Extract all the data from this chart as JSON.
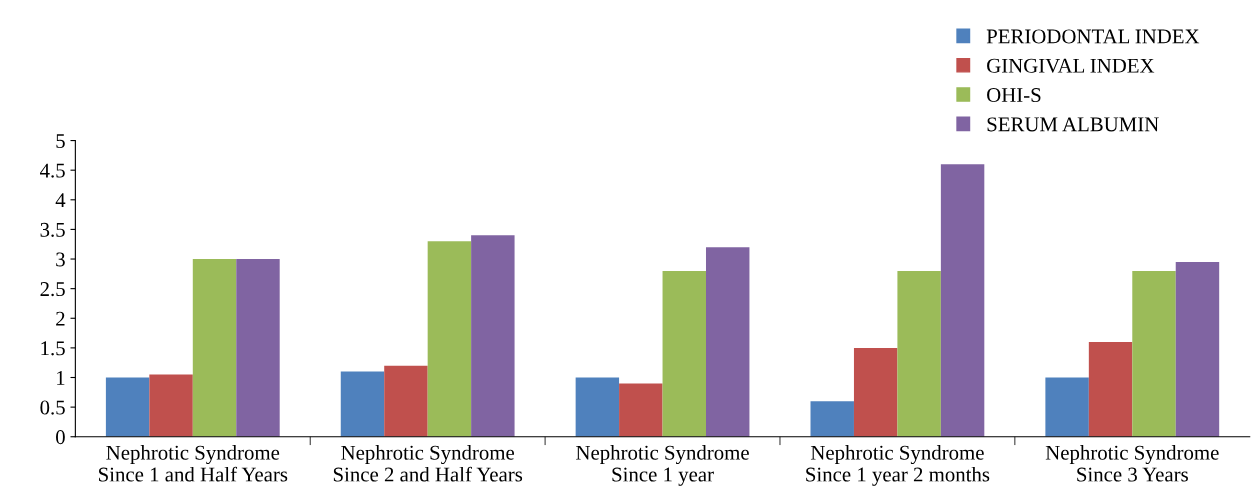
{
  "chart_data": {
    "type": "bar",
    "categories": [
      "Nephrotic Syndrome\nSince 1 and Half Years",
      "Nephrotic Syndrome\nSince 2 and Half Years",
      "Nephrotic Syndrome\nSince 1 year",
      "Nephrotic Syndrome\nSince 1 year 2 months",
      "Nephrotic Syndrome\nSince 3 Years"
    ],
    "series": [
      {
        "name": "PERIODONTAL INDEX",
        "color": "#4f81bd",
        "values": [
          1.0,
          1.1,
          1.0,
          0.6,
          1.0
        ]
      },
      {
        "name": "GINGIVAL INDEX",
        "color": "#c0504d",
        "values": [
          1.05,
          1.2,
          0.9,
          1.5,
          1.6
        ]
      },
      {
        "name": "OHI-S",
        "color": "#9bbb59",
        "values": [
          3.0,
          3.3,
          2.8,
          2.8,
          2.8
        ]
      },
      {
        "name": "SERUM ALBUMIN",
        "color": "#8064a2",
        "values": [
          3.0,
          3.4,
          3.2,
          4.6,
          2.95
        ]
      }
    ],
    "ylim": [
      0,
      5
    ],
    "yticks": [
      0,
      0.5,
      1,
      1.5,
      2,
      2.5,
      3,
      3.5,
      4,
      4.5,
      5
    ],
    "grid": false,
    "legend": "top right"
  }
}
